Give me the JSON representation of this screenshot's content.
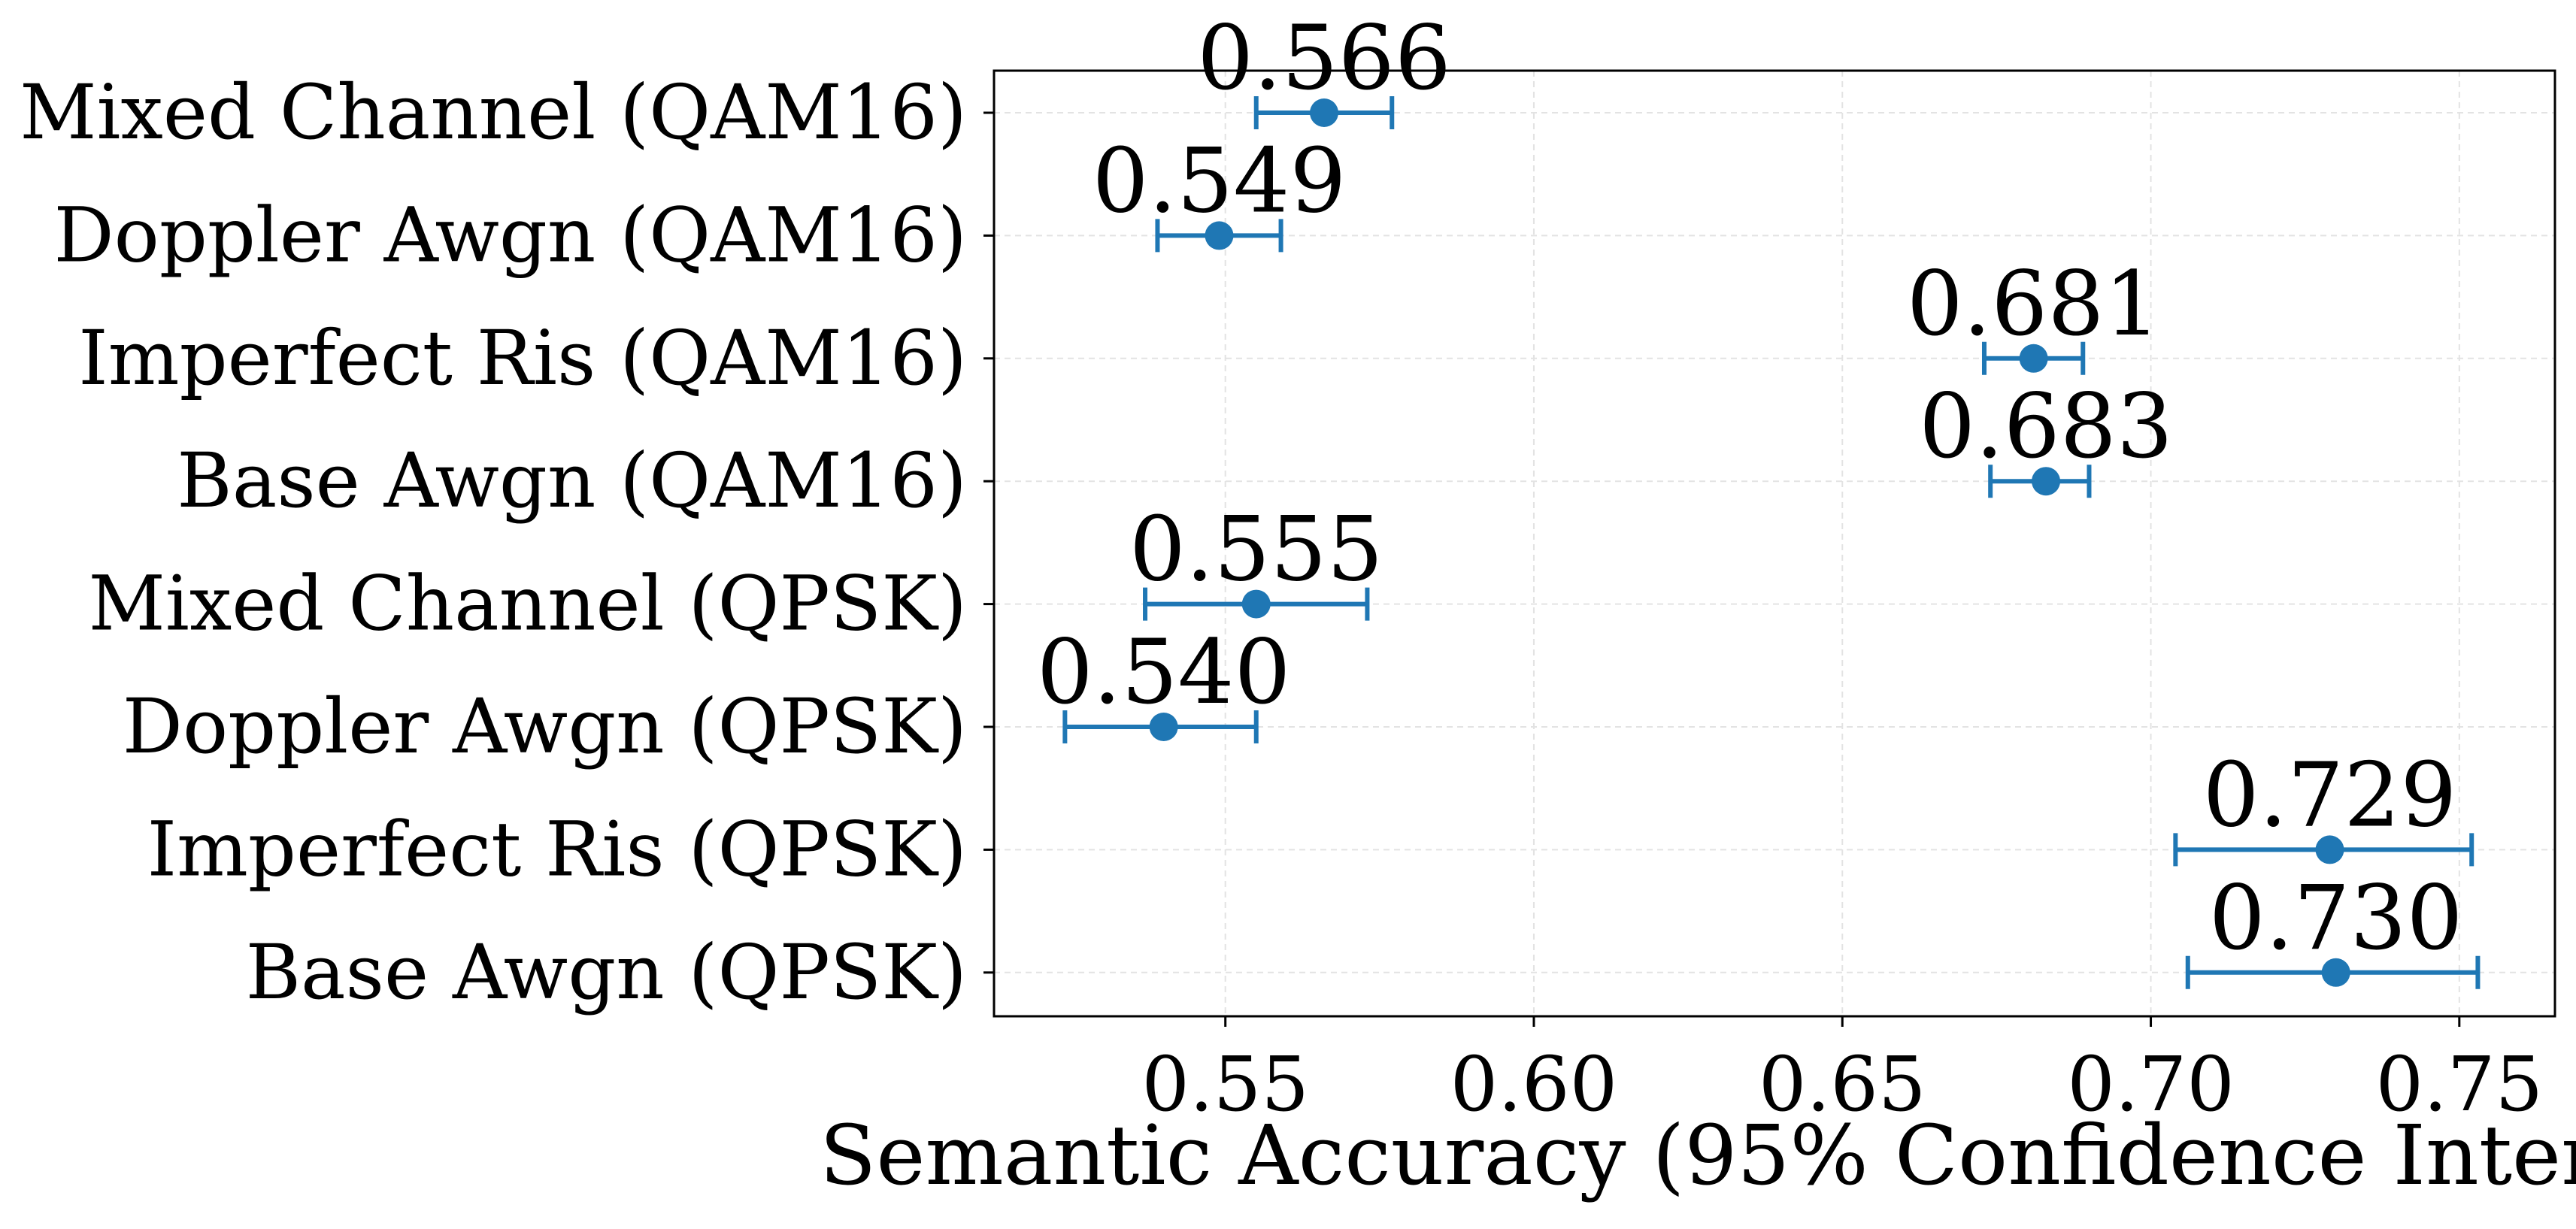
{
  "chart_data": {
    "type": "scatter",
    "title": "",
    "xlabel": "Semantic Accuracy (95% Confidence Inter",
    "ylabel": "",
    "xlim": [
      0.5125,
      0.7655
    ],
    "grid": true,
    "colors": {
      "marker": "#1f77b4"
    },
    "categories": [
      "Mixed Channel (QAM16)",
      "Doppler Awgn (QAM16)",
      "Imperfect Ris (QAM16)",
      "Base Awgn (QAM16)",
      "Mixed Channel (QPSK)",
      "Doppler Awgn (QPSK)",
      "Imperfect Ris (QPSK)",
      "Base Awgn (QPSK)"
    ],
    "values": [
      0.566,
      0.549,
      0.681,
      0.683,
      0.555,
      0.54,
      0.729,
      0.73
    ],
    "value_labels": [
      "0.566",
      "0.549",
      "0.681",
      "0.683",
      "0.555",
      "0.540",
      "0.729",
      "0.730"
    ],
    "ci_low": [
      0.555,
      0.539,
      0.673,
      0.674,
      0.537,
      0.524,
      0.704,
      0.706
    ],
    "ci_high": [
      0.577,
      0.559,
      0.689,
      0.69,
      0.573,
      0.555,
      0.752,
      0.753
    ],
    "x_ticks": [
      0.55,
      0.6,
      0.65,
      0.7,
      0.75
    ],
    "x_tick_labels": [
      "0.55",
      "0.60",
      "0.65",
      "0.70",
      "0.75"
    ]
  }
}
